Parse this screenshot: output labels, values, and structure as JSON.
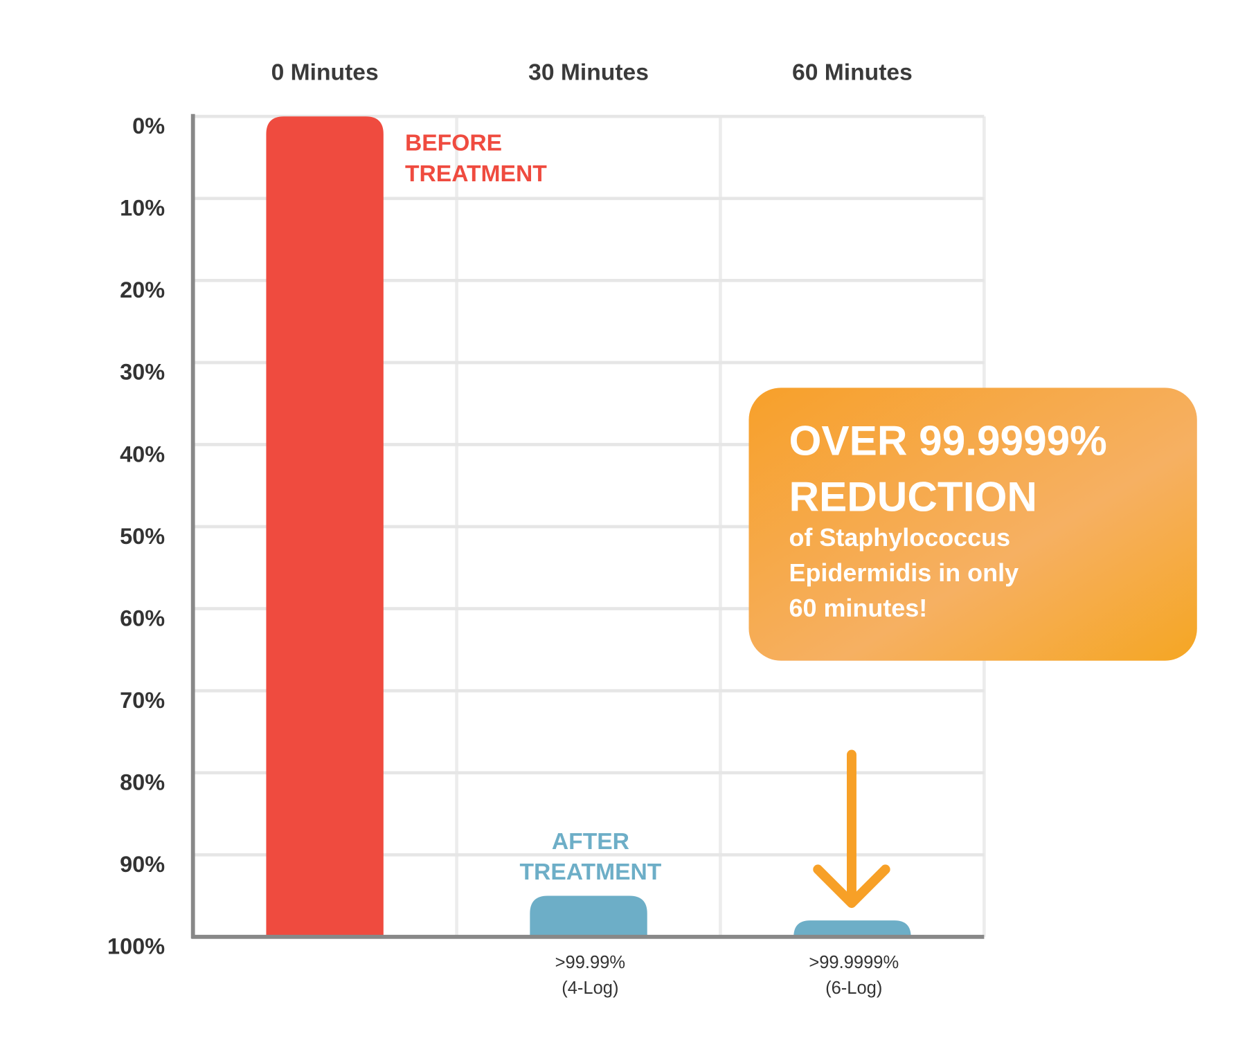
{
  "chart_data": {
    "type": "bar",
    "categories": [
      "0 Minutes",
      "30 Minutes",
      "60 Minutes"
    ],
    "values": [
      0,
      95,
      98
    ],
    "colors": [
      "#ef4b3f",
      "#6daec7",
      "#6daec7"
    ],
    "ylim": [
      0,
      100
    ],
    "y_inverted": true,
    "yticks": [
      {
        "value": 0,
        "label": "0%"
      },
      {
        "value": 10,
        "label": "10%"
      },
      {
        "value": 20,
        "label": "20%"
      },
      {
        "value": 30,
        "label": "30%"
      },
      {
        "value": 40,
        "label": "40%"
      },
      {
        "value": 50,
        "label": "50%"
      },
      {
        "value": 60,
        "label": "60%"
      },
      {
        "value": 70,
        "label": "70%"
      },
      {
        "value": 80,
        "label": "80%"
      },
      {
        "value": 90,
        "label": "90%"
      },
      {
        "value": 100,
        "label": "100%"
      }
    ],
    "grid": true,
    "annotations": [
      {
        "lines": [
          "BEFORE",
          "TREATMENT"
        ],
        "color": "#ef4b3f"
      },
      {
        "lines": [
          "AFTER",
          "TREATMENT"
        ],
        "color": "#6daec7"
      }
    ],
    "bar_notes": [
      null,
      [
        ">99.99%",
        "(4-Log)"
      ],
      [
        ">99.9999%",
        "(6-Log)"
      ]
    ],
    "callout": {
      "headline": [
        "OVER 99.9999%",
        "REDUCTION"
      ],
      "body": [
        "of Staphylococcus",
        "Epidermidis in only",
        "60 minutes!"
      ]
    }
  }
}
